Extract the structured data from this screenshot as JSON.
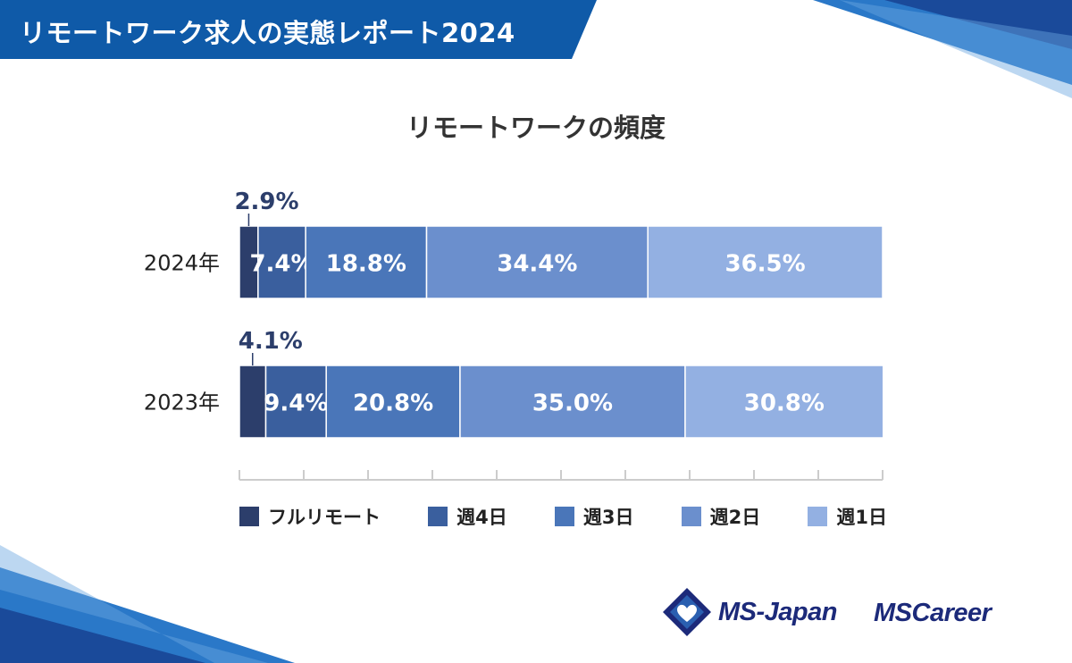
{
  "banner": {
    "title": "リモートワーク求人の実態レポート2024"
  },
  "colors": {
    "banner": "#0f5aa8",
    "full_remote": "#2c3e6b",
    "week4": "#3a5f9e",
    "week3": "#4a76b9",
    "week2": "#6b8fcd",
    "week1": "#93b0e2",
    "axis": "#cccccc",
    "label_dark": "#2c3e6b"
  },
  "chart_data": {
    "type": "bar",
    "orientation": "horizontal-stacked-100",
    "title": "リモートワークの頻度",
    "categories": [
      "2024年",
      "2023年"
    ],
    "series": [
      {
        "name": "フルリモート",
        "values": [
          2.9,
          4.1
        ],
        "labels": [
          "2.9%",
          "4.1%"
        ]
      },
      {
        "name": "週4日",
        "values": [
          7.4,
          9.4
        ],
        "labels": [
          "7.4%",
          "9.4%"
        ]
      },
      {
        "name": "週3日",
        "values": [
          18.8,
          20.8
        ],
        "labels": [
          "18.8%",
          "20.8%"
        ]
      },
      {
        "name": "週2日",
        "values": [
          34.4,
          35.0
        ],
        "labels": [
          "34.4%",
          "35.0%"
        ]
      },
      {
        "name": "週1日",
        "values": [
          36.5,
          30.8
        ],
        "labels": [
          "36.5%",
          "30.8%"
        ]
      }
    ],
    "xlim": [
      0,
      100
    ],
    "legend": "bottom"
  },
  "logos": {
    "msjapan": "MS-Japan",
    "mscareer": "MSCareer"
  }
}
